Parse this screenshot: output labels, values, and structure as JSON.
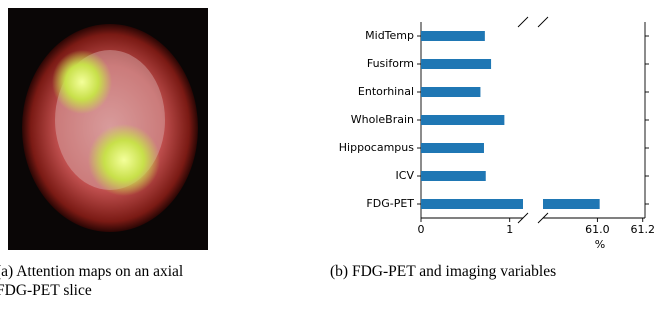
{
  "chart_data": {
    "type": "barh",
    "categories": [
      "MidTemp",
      "Fusiform",
      "Entorhinal",
      "WholeBrain",
      "Hippocampus",
      "ICV",
      "FDG-PET"
    ],
    "values": [
      0.72,
      0.79,
      0.67,
      0.94,
      0.71,
      0.73,
      61.01
    ],
    "color": "#1f77b4",
    "xlim": [
      0,
      1.15
    ],
    "xticks": [
      0,
      1
    ],
    "x2lim": [
      60.76,
      61.21
    ],
    "x2ticks": [
      {
        "value": 61.0,
        "label": "61.0"
      },
      {
        "value": 61.2,
        "label": "61.2"
      }
    ],
    "xlabel": "%"
  },
  "captions": [
    "(a) Attention maps on an axial FDG-PET slice",
    "(b) FDG-PET and imaging variables"
  ]
}
